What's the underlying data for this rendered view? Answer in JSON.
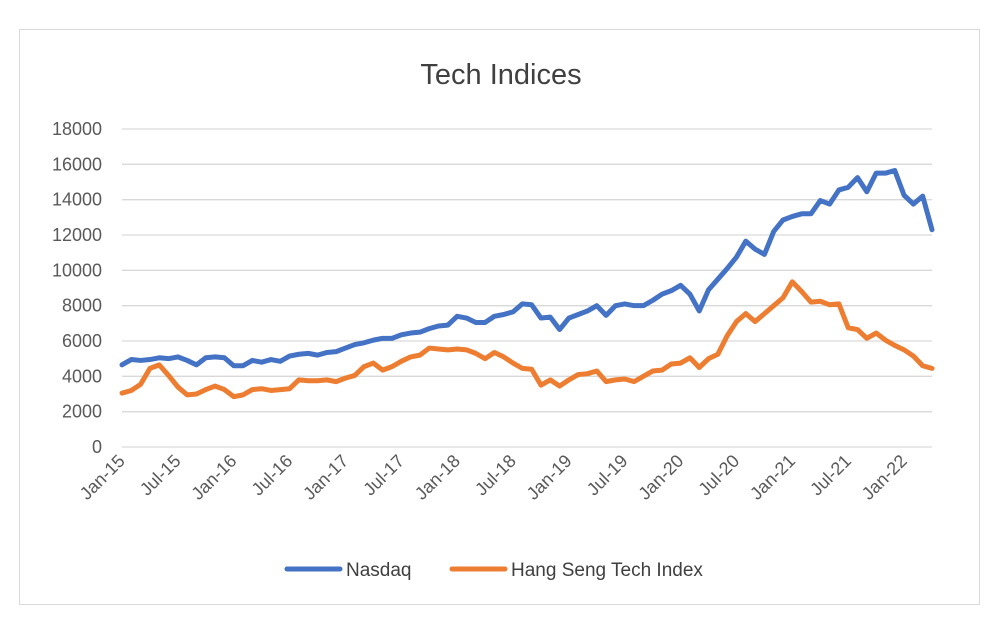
{
  "chart_data": {
    "type": "line",
    "title": "Tech Indices",
    "xlabel": "",
    "ylabel": "",
    "ylim": [
      0,
      18000
    ],
    "yticks": [
      0,
      2000,
      4000,
      6000,
      8000,
      10000,
      12000,
      14000,
      16000,
      18000
    ],
    "xtick_labels": [
      "Jan-15",
      "Jul-15",
      "Jan-16",
      "Jul-16",
      "Jan-17",
      "Jul-17",
      "Jan-18",
      "Jul-18",
      "Jan-19",
      "Jul-19",
      "Jan-20",
      "Jul-20",
      "Jan-21",
      "Jul-21",
      "Jan-22"
    ],
    "x_start": "2015-01",
    "x_end": "2022-04",
    "grid": true,
    "legend_position": "bottom",
    "series": [
      {
        "name": "Nasdaq",
        "color": "#4472C4",
        "values": [
          4650,
          4950,
          4900,
          4950,
          5050,
          5000,
          5100,
          4900,
          4650,
          5050,
          5100,
          5050,
          4600,
          4600,
          4900,
          4800,
          4950,
          4850,
          5150,
          5250,
          5300,
          5200,
          5350,
          5400,
          5600,
          5800,
          5900,
          6050,
          6150,
          6150,
          6350,
          6450,
          6500,
          6700,
          6850,
          6900,
          7400,
          7300,
          7050,
          7050,
          7400,
          7500,
          7650,
          8100,
          8050,
          7300,
          7350,
          6650,
          7300,
          7500,
          7700,
          8000,
          7450,
          8000,
          8100,
          8000,
          8000,
          8300,
          8650,
          8850,
          9150,
          8650,
          7700,
          8900,
          9500,
          10100,
          10750,
          11650,
          11200,
          10900,
          12200,
          12850,
          13050,
          13200,
          13200,
          13950,
          13750,
          14550,
          14700,
          15250,
          14450,
          15500,
          15500,
          15650,
          14250,
          13750,
          14200,
          12300
        ]
      },
      {
        "name": "Hang Seng Tech Index",
        "color": "#ED7D31",
        "values": [
          3050,
          3200,
          3550,
          4450,
          4650,
          4050,
          3400,
          2950,
          3000,
          3250,
          3450,
          3250,
          2850,
          2950,
          3250,
          3300,
          3200,
          3250,
          3300,
          3800,
          3750,
          3750,
          3800,
          3700,
          3900,
          4050,
          4550,
          4750,
          4350,
          4550,
          4850,
          5100,
          5200,
          5600,
          5550,
          5500,
          5550,
          5500,
          5300,
          5000,
          5350,
          5100,
          4750,
          4450,
          4400,
          3500,
          3800,
          3450,
          3800,
          4100,
          4150,
          4300,
          3700,
          3800,
          3850,
          3700,
          4000,
          4300,
          4350,
          4700,
          4750,
          5050,
          4500,
          5000,
          5250,
          6300,
          7100,
          7550,
          7100,
          7550,
          8000,
          8450,
          9350,
          8800,
          8200,
          8250,
          8050,
          8100,
          6750,
          6650,
          6150,
          6450,
          6050,
          5750,
          5500,
          5150,
          4600,
          4450
        ]
      }
    ]
  }
}
